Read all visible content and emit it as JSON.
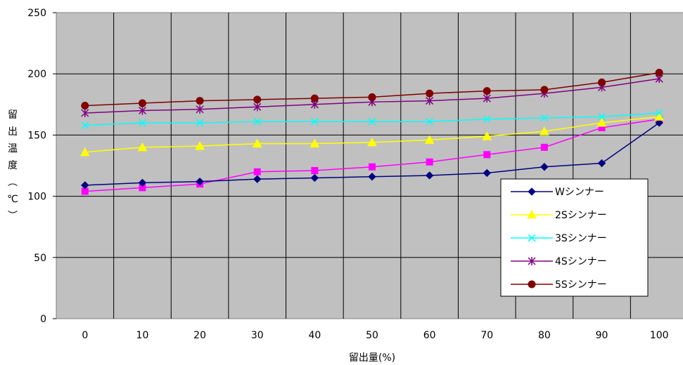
{
  "chart_data": {
    "type": "line",
    "title": "",
    "xlabel": "留出量(%)",
    "ylabel": "留出温度(℃)",
    "x": [
      0,
      10,
      20,
      30,
      40,
      50,
      60,
      70,
      80,
      90,
      100
    ],
    "xlim": [
      -5,
      105
    ],
    "ylim": [
      0,
      250
    ],
    "yticks": [
      0,
      50,
      100,
      150,
      200,
      250
    ],
    "grid": true,
    "legend_position": "lower-right",
    "plot_background": "#c0c0c0",
    "unnamed_series": {
      "color": "#ff00ff",
      "marker": "square",
      "values": [
        104,
        107,
        110,
        120,
        121,
        124,
        128,
        134,
        140,
        156,
        163
      ]
    },
    "series": [
      {
        "name": "Wシンナー",
        "color": "#000080",
        "marker": "diamond",
        "values": [
          109,
          111,
          112,
          114,
          115,
          116,
          117,
          119,
          124,
          127,
          160
        ]
      },
      {
        "name": "2Sシンナー",
        "color": "#ffff00",
        "marker": "triangle",
        "values": [
          136,
          140,
          141,
          143,
          143,
          144,
          146,
          149,
          153,
          160,
          165
        ]
      },
      {
        "name": "3Sシンナー",
        "color": "#00ffff",
        "marker": "x",
        "values": [
          158,
          160,
          160,
          161,
          161,
          161,
          161,
          163,
          164,
          165,
          168
        ]
      },
      {
        "name": "4Sシンナー",
        "color": "#800080",
        "marker": "star",
        "values": [
          168,
          170,
          171,
          173,
          175,
          177,
          178,
          180,
          184,
          189,
          196
        ]
      },
      {
        "name": "5Sシンナー",
        "color": "#800000",
        "marker": "circle",
        "values": [
          174,
          176,
          178,
          179,
          180,
          181,
          184,
          186,
          187,
          193,
          201
        ]
      }
    ]
  }
}
